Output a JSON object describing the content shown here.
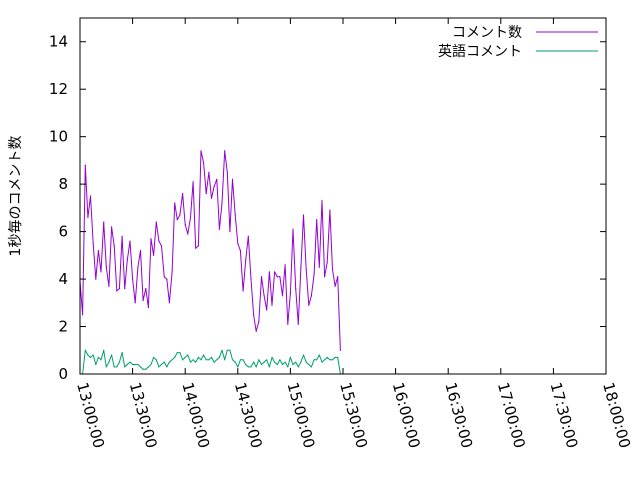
{
  "chart_data": {
    "type": "line",
    "title": "",
    "xlabel": "",
    "ylabel": "1秒毎のコメント数",
    "x_unit": "time",
    "x_ticks": [
      "13:00:00",
      "13:30:00",
      "14:00:00",
      "14:30:00",
      "15:00:00",
      "15:30:00",
      "16:00:00",
      "16:30:00",
      "17:00:00",
      "17:30:00",
      "18:00:00"
    ],
    "y_ticks": [
      0,
      2,
      4,
      6,
      8,
      10,
      12,
      14
    ],
    "xlim": [
      "13:00:00",
      "18:00:00"
    ],
    "ylim": [
      0,
      15
    ],
    "grid": false,
    "legend_position": "top-right",
    "series": [
      {
        "name": "コメント数",
        "color": "#9400d3",
        "points": [
          [
            "13:00:00",
            3.9
          ],
          [
            "13:01:30",
            2.5
          ],
          [
            "13:03:00",
            8.8
          ],
          [
            "13:04:30",
            6.6
          ],
          [
            "13:06:00",
            7.5
          ],
          [
            "13:07:30",
            5.5
          ],
          [
            "13:09:00",
            4.0
          ],
          [
            "13:10:30",
            5.2
          ],
          [
            "13:12:00",
            4.3
          ],
          [
            "13:13:30",
            6.4
          ],
          [
            "13:15:00",
            4.5
          ],
          [
            "13:16:30",
            3.7
          ],
          [
            "13:18:00",
            6.2
          ],
          [
            "13:19:30",
            5.4
          ],
          [
            "13:21:00",
            3.5
          ],
          [
            "13:22:30",
            3.6
          ],
          [
            "13:24:00",
            5.8
          ],
          [
            "13:25:30",
            3.6
          ],
          [
            "13:27:00",
            4.8
          ],
          [
            "13:28:30",
            5.6
          ],
          [
            "13:30:00",
            4.0
          ],
          [
            "13:31:30",
            3.0
          ],
          [
            "13:33:00",
            4.5
          ],
          [
            "13:34:30",
            5.2
          ],
          [
            "13:36:00",
            3.1
          ],
          [
            "13:37:30",
            3.6
          ],
          [
            "13:39:00",
            2.8
          ],
          [
            "13:40:30",
            5.7
          ],
          [
            "13:42:00",
            5.0
          ],
          [
            "13:43:30",
            6.4
          ],
          [
            "13:45:00",
            5.6
          ],
          [
            "13:46:30",
            5.4
          ],
          [
            "13:48:00",
            4.1
          ],
          [
            "13:49:30",
            4.0
          ],
          [
            "13:51:00",
            3.0
          ],
          [
            "13:52:30",
            4.3
          ],
          [
            "13:54:00",
            7.2
          ],
          [
            "13:55:30",
            6.5
          ],
          [
            "13:57:00",
            6.7
          ],
          [
            "13:58:30",
            7.6
          ],
          [
            "14:00:00",
            6.3
          ],
          [
            "14:01:30",
            5.9
          ],
          [
            "14:03:00",
            6.6
          ],
          [
            "14:04:30",
            8.1
          ],
          [
            "14:06:00",
            5.3
          ],
          [
            "14:07:30",
            5.4
          ],
          [
            "14:09:00",
            9.4
          ],
          [
            "14:10:30",
            8.9
          ],
          [
            "14:12:00",
            7.6
          ],
          [
            "14:13:30",
            8.5
          ],
          [
            "14:15:00",
            7.4
          ],
          [
            "14:16:30",
            7.9
          ],
          [
            "14:18:00",
            8.2
          ],
          [
            "14:19:30",
            6.1
          ],
          [
            "14:21:00",
            7.2
          ],
          [
            "14:22:30",
            9.4
          ],
          [
            "14:24:00",
            8.5
          ],
          [
            "14:25:30",
            6.0
          ],
          [
            "14:27:00",
            8.2
          ],
          [
            "14:28:30",
            6.7
          ],
          [
            "14:30:00",
            5.5
          ],
          [
            "14:31:30",
            5.2
          ],
          [
            "14:33:00",
            3.5
          ],
          [
            "14:34:30",
            4.8
          ],
          [
            "14:36:00",
            5.8
          ],
          [
            "14:37:30",
            4.0
          ],
          [
            "14:39:00",
            2.5
          ],
          [
            "14:40:30",
            1.8
          ],
          [
            "14:42:00",
            2.2
          ],
          [
            "14:43:30",
            4.1
          ],
          [
            "14:45:00",
            3.3
          ],
          [
            "14:46:30",
            2.7
          ],
          [
            "14:48:00",
            4.3
          ],
          [
            "14:49:30",
            2.9
          ],
          [
            "14:51:00",
            4.3
          ],
          [
            "14:52:30",
            4.1
          ],
          [
            "14:54:00",
            4.1
          ],
          [
            "14:55:30",
            3.3
          ],
          [
            "14:57:00",
            4.6
          ],
          [
            "14:58:30",
            2.1
          ],
          [
            "15:00:00",
            3.4
          ],
          [
            "15:01:30",
            6.1
          ],
          [
            "15:03:00",
            3.6
          ],
          [
            "15:04:30",
            2.1
          ],
          [
            "15:06:00",
            4.5
          ],
          [
            "15:07:30",
            6.7
          ],
          [
            "15:09:00",
            4.4
          ],
          [
            "15:10:30",
            2.9
          ],
          [
            "15:12:00",
            3.3
          ],
          [
            "15:13:30",
            4.2
          ],
          [
            "15:15:00",
            6.5
          ],
          [
            "15:16:30",
            4.5
          ],
          [
            "15:18:00",
            7.3
          ],
          [
            "15:19:30",
            4.1
          ],
          [
            "15:21:00",
            4.7
          ],
          [
            "15:22:30",
            6.9
          ],
          [
            "15:24:00",
            4.4
          ],
          [
            "15:25:30",
            3.7
          ],
          [
            "15:27:00",
            4.1
          ],
          [
            "15:28:30",
            1.0
          ]
        ]
      },
      {
        "name": "英語コメント",
        "color": "#009e73",
        "points": [
          [
            "13:00:00",
            0.0
          ],
          [
            "13:01:30",
            0.0
          ],
          [
            "13:03:00",
            1.0
          ],
          [
            "13:04:30",
            0.8
          ],
          [
            "13:06:00",
            0.7
          ],
          [
            "13:07:30",
            0.8
          ],
          [
            "13:09:00",
            0.4
          ],
          [
            "13:10:30",
            0.7
          ],
          [
            "13:12:00",
            0.6
          ],
          [
            "13:13:30",
            1.0
          ],
          [
            "13:15:00",
            0.3
          ],
          [
            "13:16:30",
            0.5
          ],
          [
            "13:18:00",
            0.8
          ],
          [
            "13:19:30",
            0.3
          ],
          [
            "13:21:00",
            0.3
          ],
          [
            "13:22:30",
            0.5
          ],
          [
            "13:24:00",
            0.9
          ],
          [
            "13:25:30",
            0.3
          ],
          [
            "13:27:00",
            0.4
          ],
          [
            "13:28:30",
            0.5
          ],
          [
            "13:30:00",
            0.4
          ],
          [
            "13:31:30",
            0.4
          ],
          [
            "13:33:00",
            0.4
          ],
          [
            "13:34:30",
            0.3
          ],
          [
            "13:36:00",
            0.2
          ],
          [
            "13:37:30",
            0.2
          ],
          [
            "13:39:00",
            0.3
          ],
          [
            "13:40:30",
            0.4
          ],
          [
            "13:42:00",
            0.7
          ],
          [
            "13:43:30",
            0.6
          ],
          [
            "13:45:00",
            0.3
          ],
          [
            "13:46:30",
            0.4
          ],
          [
            "13:48:00",
            0.5
          ],
          [
            "13:49:30",
            0.3
          ],
          [
            "13:51:00",
            0.5
          ],
          [
            "13:52:30",
            0.6
          ],
          [
            "13:54:00",
            0.7
          ],
          [
            "13:55:30",
            0.9
          ],
          [
            "13:57:00",
            0.9
          ],
          [
            "13:58:30",
            0.6
          ],
          [
            "14:00:00",
            0.7
          ],
          [
            "14:01:30",
            0.8
          ],
          [
            "14:03:00",
            0.5
          ],
          [
            "14:04:30",
            0.6
          ],
          [
            "14:06:00",
            0.5
          ],
          [
            "14:07:30",
            0.7
          ],
          [
            "14:09:00",
            0.6
          ],
          [
            "14:10:30",
            0.8
          ],
          [
            "14:12:00",
            0.6
          ],
          [
            "14:13:30",
            0.6
          ],
          [
            "14:15:00",
            0.7
          ],
          [
            "14:16:30",
            0.5
          ],
          [
            "14:18:00",
            0.6
          ],
          [
            "14:19:30",
            0.7
          ],
          [
            "14:21:00",
            1.0
          ],
          [
            "14:22:30",
            0.6
          ],
          [
            "14:24:00",
            1.0
          ],
          [
            "14:25:30",
            1.0
          ],
          [
            "14:27:00",
            0.6
          ],
          [
            "14:28:30",
            0.5
          ],
          [
            "14:30:00",
            0.3
          ],
          [
            "14:31:30",
            0.6
          ],
          [
            "14:33:00",
            0.6
          ],
          [
            "14:34:30",
            0.4
          ],
          [
            "14:36:00",
            0.3
          ],
          [
            "14:37:30",
            0.3
          ],
          [
            "14:39:00",
            0.5
          ],
          [
            "14:40:30",
            0.3
          ],
          [
            "14:42:00",
            0.6
          ],
          [
            "14:43:30",
            0.4
          ],
          [
            "14:45:00",
            0.5
          ],
          [
            "14:46:30",
            0.6
          ],
          [
            "14:48:00",
            0.3
          ],
          [
            "14:49:30",
            0.7
          ],
          [
            "14:51:00",
            0.5
          ],
          [
            "14:52:30",
            0.4
          ],
          [
            "14:54:00",
            0.6
          ],
          [
            "14:55:30",
            0.4
          ],
          [
            "14:57:00",
            0.5
          ],
          [
            "14:58:30",
            0.3
          ],
          [
            "15:00:00",
            0.7
          ],
          [
            "15:01:30",
            0.4
          ],
          [
            "15:03:00",
            0.5
          ],
          [
            "15:04:30",
            0.3
          ],
          [
            "15:06:00",
            0.5
          ],
          [
            "15:07:30",
            0.8
          ],
          [
            "15:09:00",
            0.5
          ],
          [
            "15:10:30",
            0.4
          ],
          [
            "15:12:00",
            0.3
          ],
          [
            "15:13:30",
            0.6
          ],
          [
            "15:15:00",
            0.6
          ],
          [
            "15:16:30",
            0.8
          ],
          [
            "15:18:00",
            0.5
          ],
          [
            "15:19:30",
            0.6
          ],
          [
            "15:21:00",
            0.7
          ],
          [
            "15:22:30",
            0.6
          ],
          [
            "15:24:00",
            0.6
          ],
          [
            "15:25:30",
            0.7
          ],
          [
            "15:27:00",
            0.7
          ],
          [
            "15:28:30",
            0.0
          ]
        ]
      }
    ]
  }
}
